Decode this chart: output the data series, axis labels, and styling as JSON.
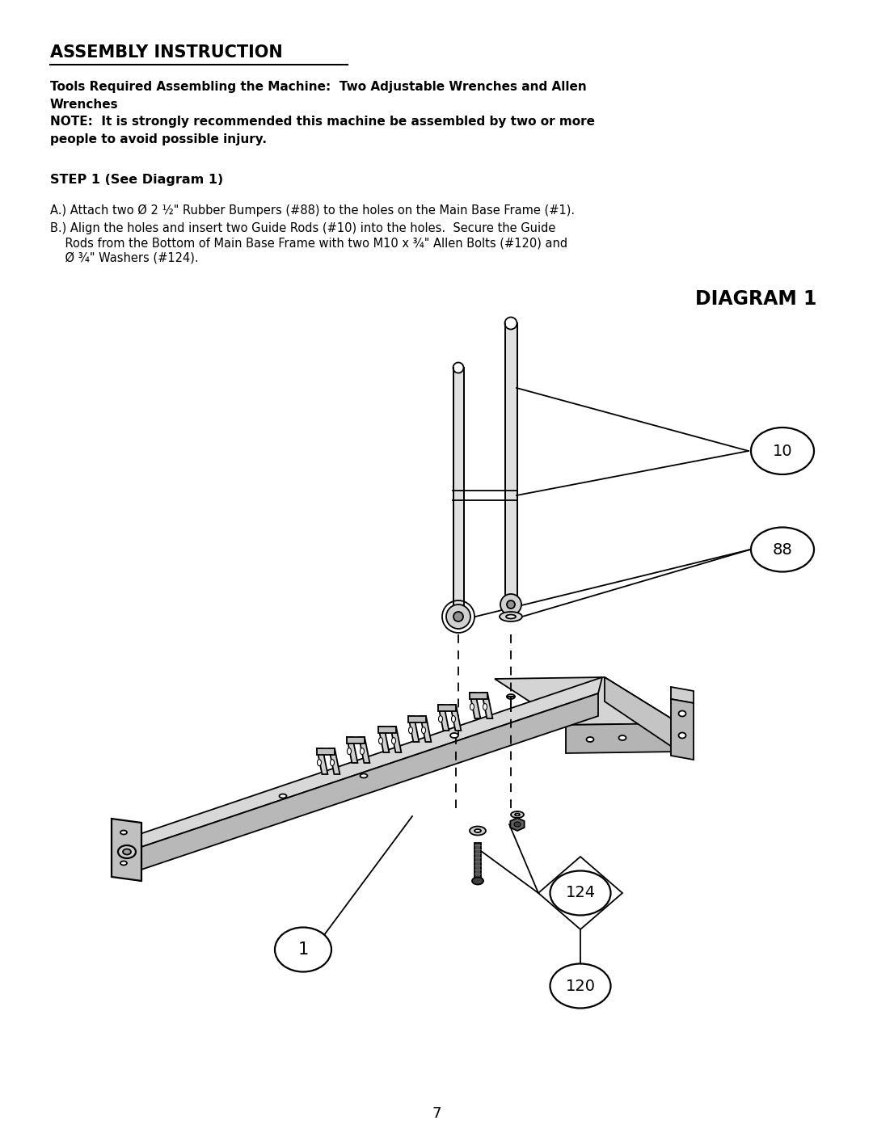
{
  "title": "ASSEMBLY INSTRUCTION",
  "para1_bold": "Tools Required Assembling the Machine:  Two Adjustable Wrenches and Allen\nWrenches\nNOTE:  It is strongly recommended this machine be assembled by two or more\npeople to avoid possible injury.",
  "step1": "STEP 1 (See Diagram 1)",
  "stepA": "A.) Attach two Ø 2 ½\" Rubber Bumpers (#88) to the holes on the Main Base Frame (#1).",
  "stepB_line1": "B.) Align the holes and insert two Guide Rods (#10) into the holes.  Secure the Guide",
  "stepB_line2": "    Rods from the Bottom of Main Base Frame with two M10 x ¾\" Allen Bolts (#120) and",
  "stepB_line3": "    Ø ¾\" Washers (#124).",
  "diagram_title": "DIAGRAM 1",
  "page_num": "7",
  "bg_color": "#ffffff",
  "text_color": "#000000",
  "lc": "#000000",
  "gray_light": "#d8d8d8",
  "gray_mid": "#b8b8b8",
  "gray_dark": "#888888"
}
